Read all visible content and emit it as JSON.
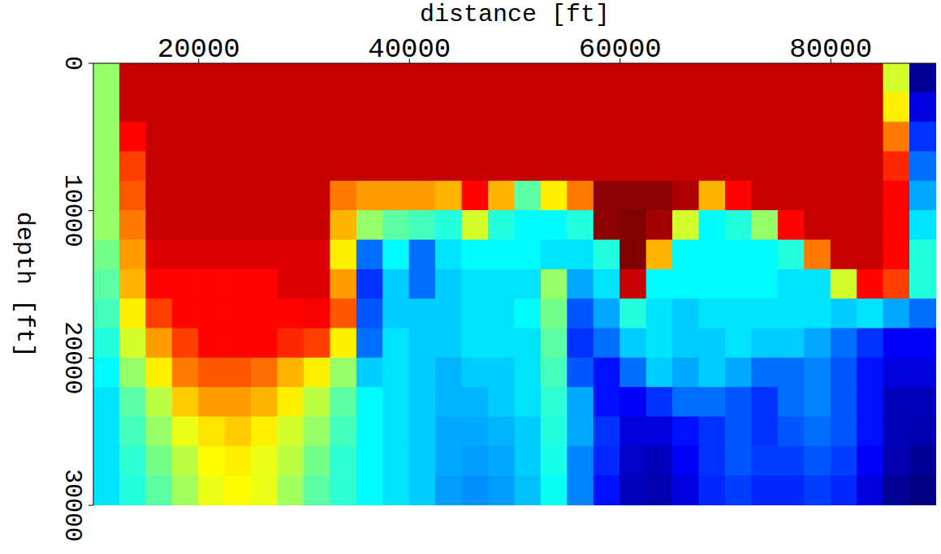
{
  "chart_data": {
    "type": "heatmap",
    "x_label": "distance [ft]",
    "y_label": "depth [ft]",
    "color": "jet",
    "xlim": [
      10000,
      90000
    ],
    "ylim": [
      0,
      30000
    ],
    "xticks": [
      20000,
      40000,
      60000,
      80000
    ],
    "yticks": [
      0,
      10000,
      20000,
      30000
    ],
    "x": [
      11250,
      13750,
      16250,
      18750,
      21250,
      23750,
      26250,
      28750,
      31250,
      33750,
      36250,
      38750,
      41250,
      43750,
      46250,
      48750,
      51250,
      53750,
      56250,
      58750,
      61250,
      63750,
      66250,
      68750,
      71250,
      73750,
      76250,
      78750,
      81250,
      83750,
      86250,
      88750
    ],
    "y": [
      1000,
      3000,
      5000,
      7000,
      9000,
      11000,
      13000,
      15000,
      17000,
      19000,
      21000,
      23000,
      25000,
      27000,
      29000
    ],
    "cells": [
      [
        55,
        90,
        90,
        90,
        90,
        90,
        90,
        90,
        90,
        90,
        90,
        90,
        90,
        90,
        90,
        90,
        90,
        90,
        90,
        90,
        90,
        90,
        90,
        90,
        90,
        90,
        90,
        90,
        90,
        90,
        60,
        12
      ],
      [
        55,
        90,
        90,
        90,
        90,
        90,
        90,
        90,
        90,
        90,
        90,
        90,
        90,
        90,
        90,
        90,
        90,
        90,
        90,
        90,
        90,
        90,
        90,
        90,
        90,
        90,
        90,
        90,
        90,
        90,
        65,
        18
      ],
      [
        55,
        85,
        90,
        90,
        90,
        90,
        90,
        90,
        90,
        90,
        90,
        90,
        90,
        90,
        90,
        90,
        90,
        90,
        90,
        90,
        90,
        90,
        90,
        90,
        90,
        90,
        90,
        90,
        90,
        90,
        75,
        25
      ],
      [
        55,
        80,
        90,
        90,
        90,
        90,
        90,
        90,
        90,
        90,
        90,
        90,
        90,
        90,
        90,
        90,
        90,
        90,
        90,
        90,
        90,
        90,
        90,
        90,
        90,
        90,
        90,
        90,
        90,
        90,
        82,
        30
      ],
      [
        55,
        78,
        90,
        90,
        90,
        90,
        90,
        90,
        90,
        75,
        72,
        72,
        72,
        70,
        85,
        70,
        50,
        65,
        75,
        95,
        95,
        95,
        92,
        70,
        85,
        90,
        90,
        90,
        90,
        90,
        85,
        35
      ],
      [
        55,
        75,
        90,
        90,
        90,
        90,
        90,
        90,
        90,
        70,
        55,
        50,
        48,
        45,
        60,
        45,
        42,
        42,
        45,
        95,
        96,
        93,
        60,
        42,
        45,
        55,
        85,
        90,
        90,
        90,
        85,
        40
      ],
      [
        52,
        72,
        88,
        88,
        88,
        88,
        88,
        88,
        88,
        65,
        30,
        42,
        30,
        40,
        42,
        42,
        42,
        40,
        40,
        45,
        96,
        70,
        42,
        42,
        42,
        42,
        45,
        75,
        90,
        90,
        85,
        45
      ],
      [
        50,
        70,
        85,
        85,
        85,
        85,
        85,
        88,
        88,
        72,
        25,
        38,
        30,
        38,
        40,
        40,
        40,
        55,
        35,
        40,
        90,
        42,
        42,
        42,
        42,
        42,
        40,
        40,
        60,
        85,
        80,
        45
      ],
      [
        48,
        65,
        80,
        85,
        85,
        85,
        85,
        85,
        86,
        78,
        28,
        38,
        38,
        38,
        40,
        40,
        42,
        52,
        28,
        35,
        45,
        40,
        38,
        40,
        40,
        40,
        40,
        40,
        38,
        40,
        35,
        30
      ],
      [
        45,
        60,
        72,
        80,
        85,
        85,
        85,
        82,
        80,
        65,
        30,
        40,
        38,
        38,
        40,
        40,
        40,
        50,
        25,
        30,
        38,
        40,
        38,
        38,
        40,
        38,
        38,
        35,
        30,
        25,
        20,
        20
      ],
      [
        42,
        55,
        65,
        75,
        78,
        78,
        76,
        70,
        65,
        55,
        38,
        40,
        38,
        36,
        38,
        38,
        40,
        48,
        28,
        22,
        30,
        38,
        35,
        38,
        35,
        30,
        30,
        32,
        28,
        22,
        18,
        18
      ],
      [
        40,
        50,
        58,
        68,
        72,
        72,
        70,
        65,
        58,
        50,
        42,
        40,
        38,
        36,
        36,
        38,
        40,
        46,
        35,
        22,
        20,
        25,
        30,
        30,
        28,
        25,
        30,
        32,
        28,
        22,
        15,
        15
      ],
      [
        40,
        48,
        55,
        62,
        66,
        68,
        65,
        60,
        55,
        48,
        42,
        40,
        38,
        35,
        35,
        36,
        38,
        45,
        35,
        25,
        18,
        18,
        22,
        25,
        28,
        25,
        28,
        30,
        28,
        22,
        15,
        14
      ],
      [
        40,
        46,
        52,
        58,
        64,
        65,
        62,
        58,
        52,
        46,
        42,
        40,
        38,
        35,
        34,
        35,
        38,
        44,
        32,
        24,
        16,
        15,
        20,
        25,
        28,
        26,
        26,
        28,
        26,
        20,
        14,
        12
      ],
      [
        40,
        45,
        50,
        56,
        62,
        64,
        62,
        56,
        50,
        46,
        42,
        40,
        38,
        34,
        33,
        34,
        37,
        43,
        32,
        22,
        15,
        14,
        18,
        24,
        26,
        24,
        24,
        26,
        24,
        18,
        12,
        10
      ]
    ]
  }
}
